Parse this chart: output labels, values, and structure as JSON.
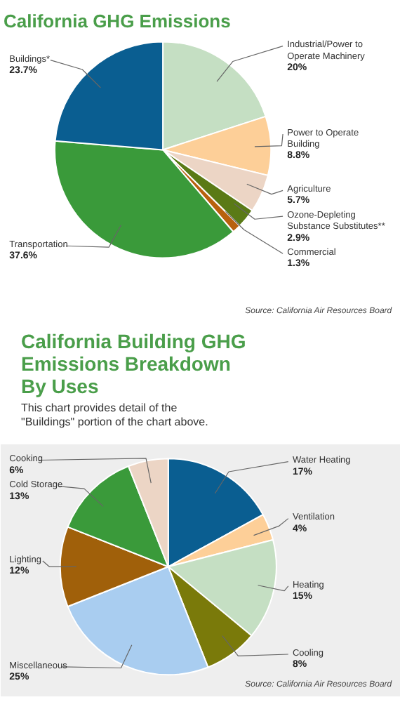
{
  "chart_data": [
    {
      "type": "pie",
      "title": "California GHG Emissions",
      "categories": [
        "Industrial/Power to Operate Machinery",
        "Power to Operate Building",
        "Agriculture",
        "Ozone-Depleting Substance Substitutes**",
        "Commercial",
        "Transportation",
        "Buildings*"
      ],
      "values": [
        20,
        8.8,
        5.7,
        2.9,
        1.3,
        37.6,
        23.7
      ],
      "colors": [
        "#c5dfc3",
        "#fdcf98",
        "#ecd5c5",
        "#5a7a16",
        "#b8610e",
        "#3a9a3a",
        "#0a5e91"
      ],
      "value_labels": [
        "20%",
        "8.8%",
        "5.7%",
        "2.9%",
        "1.3%",
        "37.6%",
        "23.7%"
      ],
      "annotations": [
        "Source: California Air Resources Board"
      ]
    },
    {
      "type": "pie",
      "title": "California Building GHG Emissions Breakdown By Uses",
      "subtitle": "This chart provides detail of the \"Buildings\" portion of the chart above.",
      "categories": [
        "Water Heating",
        "Ventilation",
        "Heating",
        "Cooling",
        "Miscellaneous",
        "Lighting",
        "Cold Storage",
        "Cooking"
      ],
      "values": [
        17,
        4,
        15,
        8,
        25,
        12,
        13,
        6
      ],
      "colors": [
        "#0a5e91",
        "#fdcf98",
        "#c5dfc3",
        "#7a7a0a",
        "#a9cdf0",
        "#a0600a",
        "#3a9a3a",
        "#ecd5c5"
      ],
      "value_labels": [
        "17%",
        "4%",
        "15%",
        "8%",
        "25%",
        "12%",
        "13%",
        "6%"
      ],
      "annotations": [
        "Source: California Air Resources Board"
      ]
    }
  ]
}
